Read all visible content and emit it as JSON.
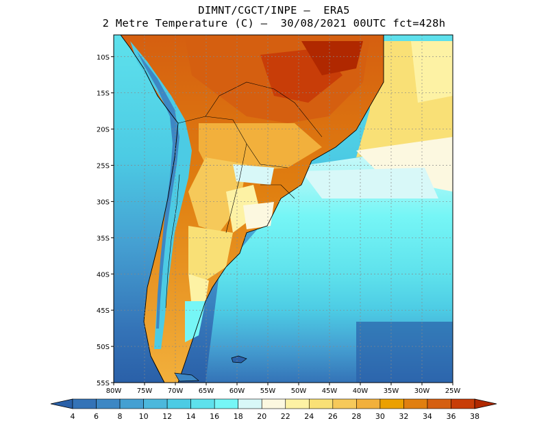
{
  "header": {
    "line1": "DIMNT/CGCT/INPE –  ERA5",
    "line2": "2 Metre Temperature (C) –  30/08/2021 00UTC fct=428h"
  },
  "map": {
    "lon_range": [
      -80,
      -25
    ],
    "lat_range": [
      -55,
      -7
    ],
    "lon_ticks": [
      {
        "v": -80,
        "label": "80W"
      },
      {
        "v": -75,
        "label": "75W"
      },
      {
        "v": -70,
        "label": "70W"
      },
      {
        "v": -65,
        "label": "65W"
      },
      {
        "v": -60,
        "label": "60W"
      },
      {
        "v": -55,
        "label": "55W"
      },
      {
        "v": -50,
        "label": "50W"
      },
      {
        "v": -45,
        "label": "45W"
      },
      {
        "v": -40,
        "label": "40W"
      },
      {
        "v": -35,
        "label": "35W"
      },
      {
        "v": -30,
        "label": "30W"
      },
      {
        "v": -25,
        "label": "25W"
      }
    ],
    "lat_ticks": [
      {
        "v": -10,
        "label": "10S"
      },
      {
        "v": -15,
        "label": "15S"
      },
      {
        "v": -20,
        "label": "20S"
      },
      {
        "v": -25,
        "label": "25S"
      },
      {
        "v": -30,
        "label": "30S"
      },
      {
        "v": -35,
        "label": "35S"
      },
      {
        "v": -40,
        "label": "40S"
      },
      {
        "v": -45,
        "label": "45S"
      },
      {
        "v": -50,
        "label": "50S"
      },
      {
        "v": -55,
        "label": "55S"
      }
    ]
  },
  "colorbar": {
    "labels": [
      "4",
      "6",
      "8",
      "10",
      "12",
      "14",
      "16",
      "18",
      "20",
      "22",
      "24",
      "26",
      "28",
      "30",
      "32",
      "34",
      "36",
      "38"
    ],
    "colors": [
      "#2a60a8",
      "#3473b7",
      "#3d87c4",
      "#45a0d2",
      "#4cb8dc",
      "#4ccbe4",
      "#5ee1ec",
      "#76f6f6",
      "#d8f8f8",
      "#fcf8e0",
      "#fdf2a4",
      "#f9e076",
      "#f6c95a",
      "#f2b03c",
      "#eba000",
      "#e07f10",
      "#d55f10",
      "#c83d08",
      "#b02800"
    ]
  }
}
